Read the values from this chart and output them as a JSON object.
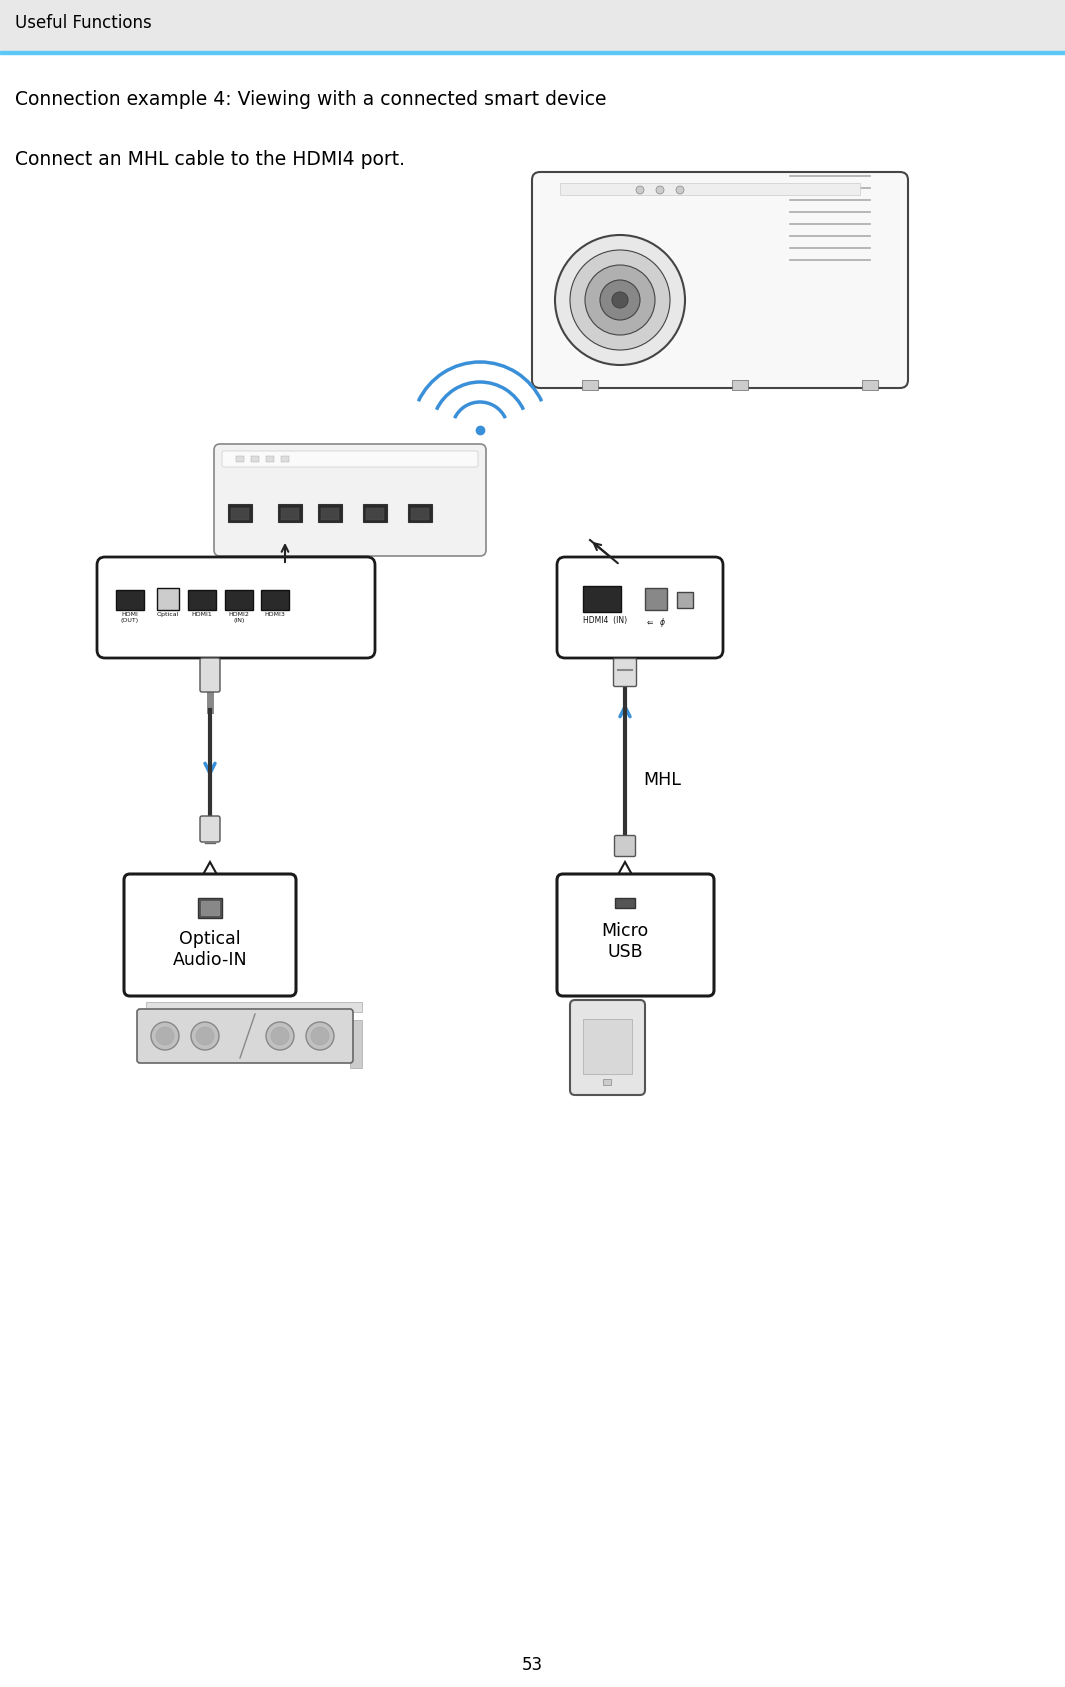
{
  "header_text": "Useful Functions",
  "header_line_color": "#5bc8f5",
  "header_bg_color": "#e8e8e8",
  "title1": "Connection example 4: Viewing with a connected smart device",
  "title2": "Connect an MHL cable to the HDMI4 port.",
  "page_number": "53",
  "bg_color": "#ffffff",
  "text_color": "#000000",
  "label_optical": "Optical\nAudio-IN",
  "label_micro": "Micro\nUSB",
  "label_mhl": "MHL",
  "arrow_blue": "#3a8fd9",
  "arrow_black": "#222222",
  "cable_dark": "#333333",
  "cable_light": "#dddddd",
  "box_bg": "#ffffff",
  "box_edge": "#1a1a1a",
  "port_dark": "#2a2a2a",
  "port_light": "#999999",
  "device_bg": "#eeeeee",
  "device_edge": "#444444"
}
